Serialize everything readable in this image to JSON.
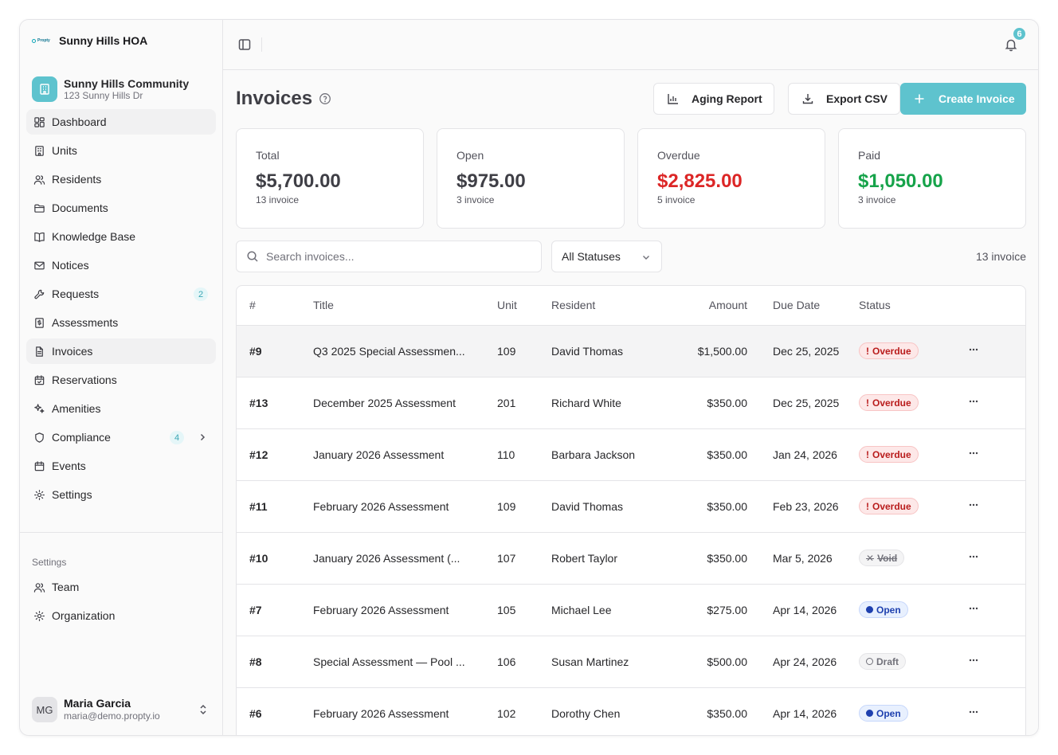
{
  "brand": {
    "logo_text": "Propty",
    "name": "Sunny Hills HOA"
  },
  "community": {
    "name": "Sunny Hills Community",
    "address": "123 Sunny Hills Dr"
  },
  "nav": [
    {
      "label": "Dashboard",
      "icon": "dashboard-icon",
      "active": true
    },
    {
      "label": "Units",
      "icon": "building-icon"
    },
    {
      "label": "Residents",
      "icon": "users-icon"
    },
    {
      "label": "Documents",
      "icon": "folder-icon"
    },
    {
      "label": "Knowledge Base",
      "icon": "book-icon"
    },
    {
      "label": "Notices",
      "icon": "mail-icon"
    },
    {
      "label": "Requests",
      "icon": "wrench-icon",
      "badge": "2"
    },
    {
      "label": "Assessments",
      "icon": "dollar-receipt-icon"
    },
    {
      "label": "Invoices",
      "icon": "file-text-icon",
      "active": true
    },
    {
      "label": "Reservations",
      "icon": "calendar-check-icon"
    },
    {
      "label": "Amenities",
      "icon": "sparkles-icon"
    },
    {
      "label": "Compliance",
      "icon": "shield-icon",
      "badge": "4",
      "chevron": true
    },
    {
      "label": "Events",
      "icon": "calendar-icon"
    },
    {
      "label": "Settings",
      "icon": "gear-icon"
    }
  ],
  "settings_section": {
    "title": "Settings",
    "items": [
      {
        "label": "Team",
        "icon": "users-icon"
      },
      {
        "label": "Organization",
        "icon": "gear-icon"
      }
    ]
  },
  "user": {
    "initials": "MG",
    "name": "Maria Garcia",
    "email": "maria@demo.propty.io"
  },
  "topbar": {
    "notification_count": "6"
  },
  "page": {
    "title": "Invoices",
    "buttons": {
      "aging": "Aging Report",
      "export": "Export CSV",
      "create": "Create Invoice"
    }
  },
  "stats": [
    {
      "label": "Total",
      "value": "$5,700.00",
      "sub": "13 invoice",
      "tone": "default"
    },
    {
      "label": "Open",
      "value": "$975.00",
      "sub": "3 invoice",
      "tone": "default"
    },
    {
      "label": "Overdue",
      "value": "$2,825.00",
      "sub": "5 invoice",
      "tone": "red"
    },
    {
      "label": "Paid",
      "value": "$1,050.00",
      "sub": "3 invoice",
      "tone": "green"
    }
  ],
  "filters": {
    "search_placeholder": "Search invoices...",
    "status_value": "All Statuses",
    "count": "13 invoice"
  },
  "table": {
    "columns": [
      "#",
      "Title",
      "Unit",
      "Resident",
      "Amount",
      "Due Date",
      "Status"
    ],
    "rows": [
      {
        "num": "#9",
        "title": "Q3 2025 Special Assessmen...",
        "unit": "109",
        "resident": "David Thomas",
        "amount": "$1,500.00",
        "due": "Dec 25, 2025",
        "status": "Overdue",
        "kind": "overdue"
      },
      {
        "num": "#13",
        "title": "December 2025 Assessment",
        "unit": "201",
        "resident": "Richard White",
        "amount": "$350.00",
        "due": "Dec 25, 2025",
        "status": "Overdue",
        "kind": "overdue"
      },
      {
        "num": "#12",
        "title": "January 2026 Assessment",
        "unit": "110",
        "resident": "Barbara Jackson",
        "amount": "$350.00",
        "due": "Jan 24, 2026",
        "status": "Overdue",
        "kind": "overdue"
      },
      {
        "num": "#11",
        "title": "February 2026 Assessment",
        "unit": "109",
        "resident": "David Thomas",
        "amount": "$350.00",
        "due": "Feb 23, 2026",
        "status": "Overdue",
        "kind": "overdue"
      },
      {
        "num": "#10",
        "title": "January 2026 Assessment (...",
        "unit": "107",
        "resident": "Robert Taylor",
        "amount": "$350.00",
        "due": "Mar 5, 2026",
        "status": "Void",
        "kind": "void"
      },
      {
        "num": "#7",
        "title": "February 2026 Assessment",
        "unit": "105",
        "resident": "Michael Lee",
        "amount": "$275.00",
        "due": "Apr 14, 2026",
        "status": "Open",
        "kind": "open"
      },
      {
        "num": "#8",
        "title": "Special Assessment — Pool ...",
        "unit": "106",
        "resident": "Susan Martinez",
        "amount": "$500.00",
        "due": "Apr 24, 2026",
        "status": "Draft",
        "kind": "draft"
      },
      {
        "num": "#6",
        "title": "February 2026 Assessment",
        "unit": "102",
        "resident": "Dorothy Chen",
        "amount": "$350.00",
        "due": "Apr 14, 2026",
        "status": "Open",
        "kind": "open"
      }
    ]
  },
  "colors": {
    "accent": "#5ec3ce",
    "overdue": "#dc2626",
    "paid": "#16a34a",
    "open": "#1e40af"
  }
}
